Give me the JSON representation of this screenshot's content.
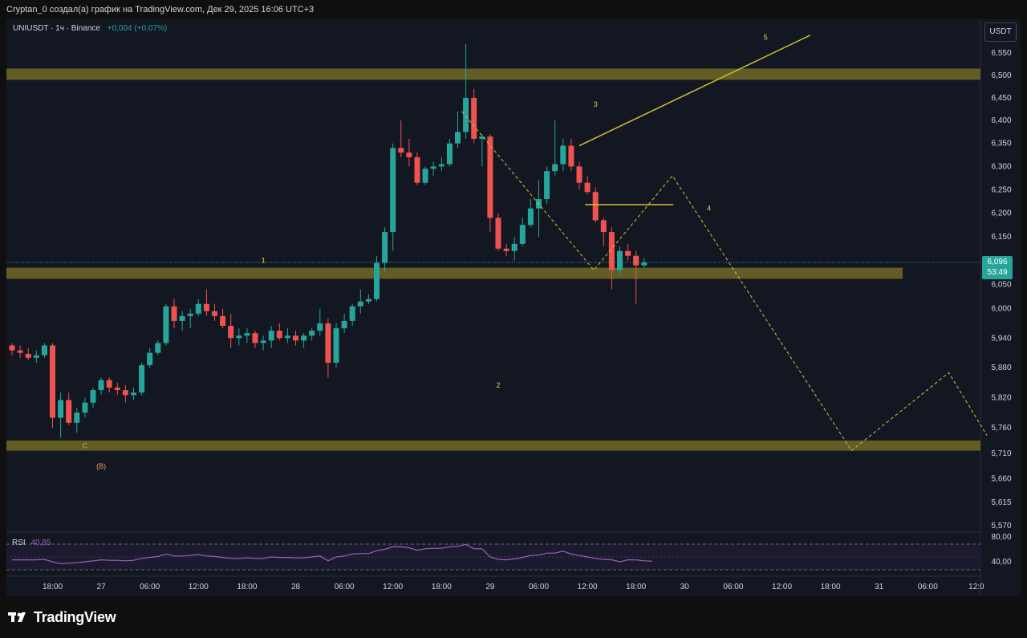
{
  "header": {
    "caption": "Cryptan_0 создал(а) график на TradingView.com, Дек 29, 2025 16:06 UTC+3"
  },
  "legend": {
    "symbol": "UNIUSDT · 1ч · Binance",
    "change": "+0,004 (+0,07%)"
  },
  "currency": "USDT",
  "last_price": {
    "value": "6,096",
    "countdown": "53:49"
  },
  "rsi": {
    "label": "RSI",
    "value": "40,85",
    "levels": [
      "80,00",
      "40,00"
    ]
  },
  "footer": {
    "brand": "TradingView"
  },
  "colors": {
    "up": "#26a69a",
    "down": "#ef5350",
    "zone": "#6b6526",
    "wave_line": "#d4c22e",
    "projection": "#d9c13a",
    "rsi": "#9b5fbf",
    "background": "#131722"
  },
  "chart_data": {
    "type": "candlestick",
    "symbol": "UNIUSDT",
    "interval": "1h",
    "exchange": "Binance",
    "y_axis": {
      "ticks": [
        "6,550",
        "6,500",
        "6,450",
        "6,400",
        "6,350",
        "6,300",
        "6,250",
        "6,200",
        "6,150",
        "6,096",
        "6,050",
        "6,000",
        "5,940",
        "5,880",
        "5,820",
        "5,760",
        "5,710",
        "5,660",
        "5,615",
        "5,570"
      ],
      "values": [
        6.55,
        6.5,
        6.45,
        6.4,
        6.35,
        6.3,
        6.25,
        6.2,
        6.15,
        6.096,
        6.05,
        6.0,
        5.94,
        5.88,
        5.82,
        5.76,
        5.71,
        5.66,
        5.615,
        5.57
      ],
      "scale": "log"
    },
    "x_axis": {
      "ticks": [
        "18:00",
        "27",
        "06:00",
        "12:00",
        "18:00",
        "28",
        "06:00",
        "12:00",
        "18:00",
        "29",
        "06:00",
        "12:00",
        "18:00",
        "30",
        "06:00",
        "12:00",
        "18:00",
        "31",
        "06:00",
        "12:0"
      ],
      "index": [
        5,
        11,
        17,
        23,
        29,
        35,
        41,
        47,
        53,
        59,
        65,
        71,
        77,
        83,
        89,
        95,
        101,
        107,
        113,
        119
      ]
    },
    "candles": [
      [
        5.925,
        5.93,
        5.905,
        5.915
      ],
      [
        5.915,
        5.925,
        5.9,
        5.91
      ],
      [
        5.908,
        5.92,
        5.895,
        5.9
      ],
      [
        5.9,
        5.915,
        5.89,
        5.905
      ],
      [
        5.905,
        5.93,
        5.9,
        5.925
      ],
      [
        5.925,
        5.93,
        5.76,
        5.78
      ],
      [
        5.78,
        5.83,
        5.74,
        5.815
      ],
      [
        5.815,
        5.83,
        5.765,
        5.77
      ],
      [
        5.77,
        5.8,
        5.75,
        5.79
      ],
      [
        5.79,
        5.82,
        5.78,
        5.81
      ],
      [
        5.81,
        5.84,
        5.8,
        5.835
      ],
      [
        5.835,
        5.86,
        5.825,
        5.855
      ],
      [
        5.855,
        5.86,
        5.83,
        5.84
      ],
      [
        5.84,
        5.85,
        5.825,
        5.835
      ],
      [
        5.835,
        5.845,
        5.81,
        5.825
      ],
      [
        5.825,
        5.84,
        5.815,
        5.83
      ],
      [
        5.83,
        5.89,
        5.825,
        5.885
      ],
      [
        5.885,
        5.92,
        5.88,
        5.91
      ],
      [
        5.91,
        5.935,
        5.905,
        5.93
      ],
      [
        5.93,
        6.01,
        5.925,
        6.005
      ],
      [
        6.005,
        6.02,
        5.96,
        5.975
      ],
      [
        5.975,
        5.995,
        5.955,
        5.985
      ],
      [
        5.985,
        6.0,
        5.96,
        5.99
      ],
      [
        5.99,
        6.02,
        5.985,
        6.01
      ],
      [
        6.01,
        6.04,
        5.985,
        5.995
      ],
      [
        5.995,
        6.01,
        5.975,
        5.985
      ],
      [
        5.985,
        6.0,
        5.96,
        5.965
      ],
      [
        5.965,
        5.99,
        5.92,
        5.94
      ],
      [
        5.94,
        5.96,
        5.925,
        5.945
      ],
      [
        5.945,
        5.96,
        5.93,
        5.95
      ],
      [
        5.95,
        5.955,
        5.92,
        5.93
      ],
      [
        5.93,
        5.945,
        5.915,
        5.935
      ],
      [
        5.935,
        5.965,
        5.92,
        5.955
      ],
      [
        5.955,
        5.97,
        5.935,
        5.94
      ],
      [
        5.94,
        5.96,
        5.93,
        5.945
      ],
      [
        5.945,
        5.955,
        5.925,
        5.935
      ],
      [
        5.935,
        5.95,
        5.92,
        5.945
      ],
      [
        5.945,
        5.96,
        5.935,
        5.955
      ],
      [
        5.955,
        6.0,
        5.945,
        5.97
      ],
      [
        5.97,
        5.98,
        5.86,
        5.89
      ],
      [
        5.89,
        5.97,
        5.88,
        5.96
      ],
      [
        5.96,
        5.99,
        5.95,
        5.975
      ],
      [
        5.975,
        6.01,
        5.965,
        6.005
      ],
      [
        6.005,
        6.04,
        5.99,
        6.015
      ],
      [
        6.015,
        6.03,
        6.01,
        6.02
      ],
      [
        6.02,
        6.11,
        6.015,
        6.095
      ],
      [
        6.095,
        6.17,
        6.075,
        6.16
      ],
      [
        6.16,
        6.35,
        6.12,
        6.34
      ],
      [
        6.34,
        6.4,
        6.32,
        6.33
      ],
      [
        6.33,
        6.36,
        6.3,
        6.32
      ],
      [
        6.32,
        6.33,
        6.26,
        6.265
      ],
      [
        6.265,
        6.3,
        6.26,
        6.295
      ],
      [
        6.295,
        6.31,
        6.28,
        6.3
      ],
      [
        6.3,
        6.32,
        6.29,
        6.305
      ],
      [
        6.305,
        6.36,
        6.3,
        6.35
      ],
      [
        6.35,
        6.42,
        6.34,
        6.375
      ],
      [
        6.375,
        6.57,
        6.36,
        6.45
      ],
      [
        6.45,
        6.47,
        6.35,
        6.36
      ],
      [
        6.36,
        6.37,
        6.3,
        6.365
      ],
      [
        6.365,
        6.37,
        6.16,
        6.19
      ],
      [
        6.19,
        6.2,
        6.12,
        6.125
      ],
      [
        6.125,
        6.135,
        6.11,
        6.12
      ],
      [
        6.12,
        6.15,
        6.1,
        6.135
      ],
      [
        6.135,
        6.19,
        6.13,
        6.175
      ],
      [
        6.175,
        6.23,
        6.17,
        6.21
      ],
      [
        6.21,
        6.27,
        6.15,
        6.23
      ],
      [
        6.23,
        6.3,
        6.22,
        6.29
      ],
      [
        6.29,
        6.4,
        6.28,
        6.305
      ],
      [
        6.305,
        6.36,
        6.29,
        6.345
      ],
      [
        6.345,
        6.36,
        6.29,
        6.3
      ],
      [
        6.3,
        6.31,
        6.25,
        6.265
      ],
      [
        6.265,
        6.28,
        6.24,
        6.245
      ],
      [
        6.245,
        6.255,
        6.18,
        6.185
      ],
      [
        6.185,
        6.19,
        6.13,
        6.16
      ],
      [
        6.16,
        6.17,
        6.04,
        6.08
      ],
      [
        6.08,
        6.13,
        6.07,
        6.12
      ],
      [
        6.12,
        6.135,
        6.1,
        6.11
      ],
      [
        6.11,
        6.12,
        6.01,
        6.09
      ],
      [
        6.09,
        6.105,
        6.085,
        6.096
      ]
    ],
    "indicators": [
      {
        "name": "RSI",
        "value": 40.85,
        "levels": [
          80,
          40
        ]
      }
    ],
    "zones": [
      {
        "from": 6.49,
        "to": 6.515
      },
      {
        "from": 6.062,
        "to": 6.085
      },
      {
        "from": 5.715,
        "to": 5.735
      }
    ],
    "annotations": [
      {
        "label": "1",
        "index": 31,
        "price": 6.095
      },
      {
        "label": "2",
        "index": 60,
        "price": 5.84
      },
      {
        "label": "3",
        "index": 72,
        "price": 6.43
      },
      {
        "label": "4",
        "index": 86,
        "price": 6.205
      },
      {
        "label": "5",
        "index": 93,
        "price": 6.58
      },
      {
        "label": "C",
        "index": 9,
        "price": 5.72
      },
      {
        "label": "(B)",
        "index": 11,
        "price": 5.68
      }
    ]
  }
}
